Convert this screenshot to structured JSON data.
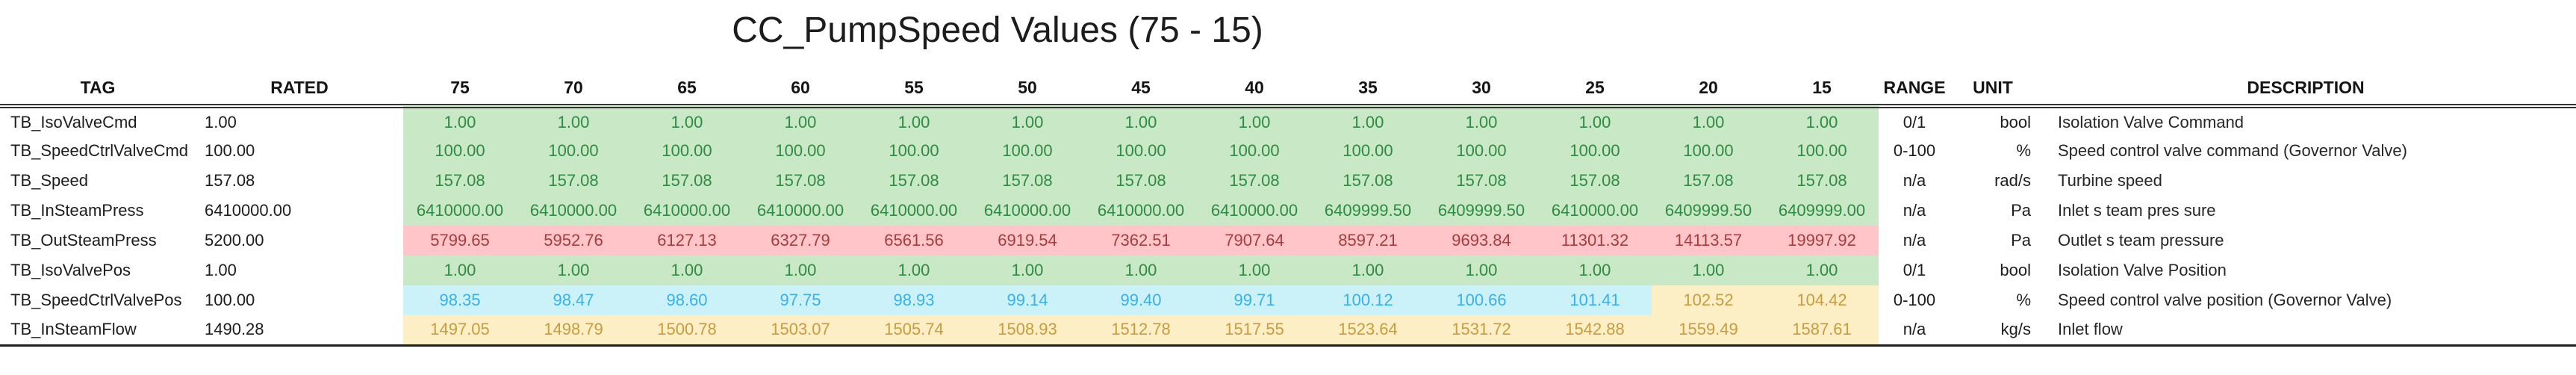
{
  "title": "CC_PumpSpeed Values (75 - 15)",
  "styles": {
    "good": {
      "bg": "#C9E8C5",
      "text": "#2E8B44"
    },
    "bad": {
      "bg": "#FFC5C9",
      "text": "#A83C3D"
    },
    "info": {
      "bg": "#CCF2F9",
      "text": "#39B0EA"
    },
    "warn": {
      "bg": "#FCEEC5",
      "text": "#C89C3C"
    }
  },
  "table": {
    "headers": {
      "tag": "TAG",
      "rated": "RATED",
      "speeds": [
        "75",
        "70",
        "65",
        "60",
        "55",
        "50",
        "45",
        "40",
        "35",
        "30",
        "25",
        "20",
        "15"
      ],
      "range": "RANGE",
      "unit": "UNIT",
      "description": "DESCRIPTION"
    },
    "rows": [
      {
        "tag": "TB_IsoValveCmd",
        "rated": "1.00",
        "values": [
          "1.00",
          "1.00",
          "1.00",
          "1.00",
          "1.00",
          "1.00",
          "1.00",
          "1.00",
          "1.00",
          "1.00",
          "1.00",
          "1.00",
          "1.00"
        ],
        "styles": [
          "good",
          "good",
          "good",
          "good",
          "good",
          "good",
          "good",
          "good",
          "good",
          "good",
          "good",
          "good",
          "good"
        ],
        "range": "0/1",
        "unit": "bool",
        "description": "Isolation Valve Command"
      },
      {
        "tag": "TB_SpeedCtrlValveCmd",
        "rated": "100.00",
        "values": [
          "100.00",
          "100.00",
          "100.00",
          "100.00",
          "100.00",
          "100.00",
          "100.00",
          "100.00",
          "100.00",
          "100.00",
          "100.00",
          "100.00",
          "100.00"
        ],
        "styles": [
          "good",
          "good",
          "good",
          "good",
          "good",
          "good",
          "good",
          "good",
          "good",
          "good",
          "good",
          "good",
          "good"
        ],
        "range": "0-100",
        "unit": "%",
        "description": "Speed control valve command (Governor Valve)"
      },
      {
        "tag": "TB_Speed",
        "rated": "157.08",
        "values": [
          "157.08",
          "157.08",
          "157.08",
          "157.08",
          "157.08",
          "157.08",
          "157.08",
          "157.08",
          "157.08",
          "157.08",
          "157.08",
          "157.08",
          "157.08"
        ],
        "styles": [
          "good",
          "good",
          "good",
          "good",
          "good",
          "good",
          "good",
          "good",
          "good",
          "good",
          "good",
          "good",
          "good"
        ],
        "range": "n/a",
        "unit": "rad/s",
        "description": "Turbine speed"
      },
      {
        "tag": "TB_InSteamPress",
        "rated": "6410000.00",
        "values": [
          "6410000.00",
          "6410000.00",
          "6410000.00",
          "6410000.00",
          "6410000.00",
          "6410000.00",
          "6410000.00",
          "6410000.00",
          "6409999.50",
          "6409999.50",
          "6410000.00",
          "6409999.50",
          "6409999.00"
        ],
        "styles": [
          "good",
          "good",
          "good",
          "good",
          "good",
          "good",
          "good",
          "good",
          "good",
          "good",
          "good",
          "good",
          "good"
        ],
        "range": "n/a",
        "unit": "Pa",
        "description": "Inlet s team pres sure"
      },
      {
        "tag": "TB_OutSteamPress",
        "rated": "5200.00",
        "values": [
          "5799.65",
          "5952.76",
          "6127.13",
          "6327.79",
          "6561.56",
          "6919.54",
          "7362.51",
          "7907.64",
          "8597.21",
          "9693.84",
          "11301.32",
          "14113.57",
          "19997.92"
        ],
        "styles": [
          "bad",
          "bad",
          "bad",
          "bad",
          "bad",
          "bad",
          "bad",
          "bad",
          "bad",
          "bad",
          "bad",
          "bad",
          "bad"
        ],
        "range": "n/a",
        "unit": "Pa",
        "description": "Outlet s team pressure"
      },
      {
        "tag": "TB_IsoValvePos",
        "rated": "1.00",
        "values": [
          "1.00",
          "1.00",
          "1.00",
          "1.00",
          "1.00",
          "1.00",
          "1.00",
          "1.00",
          "1.00",
          "1.00",
          "1.00",
          "1.00",
          "1.00"
        ],
        "styles": [
          "good",
          "good",
          "good",
          "good",
          "good",
          "good",
          "good",
          "good",
          "good",
          "good",
          "good",
          "good",
          "good"
        ],
        "range": "0/1",
        "unit": "bool",
        "description": "Isolation Valve Position"
      },
      {
        "tag": "TB_SpeedCtrlValvePos",
        "rated": "100.00",
        "values": [
          "98.35",
          "98.47",
          "98.60",
          "97.75",
          "98.93",
          "99.14",
          "99.40",
          "99.71",
          "100.12",
          "100.66",
          "101.41",
          "102.52",
          "104.42"
        ],
        "styles": [
          "info",
          "info",
          "info",
          "info",
          "info",
          "info",
          "info",
          "info",
          "info",
          "info",
          "info",
          "warn",
          "warn"
        ],
        "range": "0-100",
        "unit": "%",
        "description": "Speed control valve position (Governor Valve)"
      },
      {
        "tag": "TB_InSteamFlow",
        "rated": "1490.28",
        "values": [
          "1497.05",
          "1498.79",
          "1500.78",
          "1503.07",
          "1505.74",
          "1508.93",
          "1512.78",
          "1517.55",
          "1523.64",
          "1531.72",
          "1542.88",
          "1559.49",
          "1587.61"
        ],
        "styles": [
          "warn",
          "warn",
          "warn",
          "warn",
          "warn",
          "warn",
          "warn",
          "warn",
          "warn",
          "warn",
          "warn",
          "warn",
          "warn"
        ],
        "range": "n/a",
        "unit": "kg/s",
        "description": "Inlet flow"
      }
    ]
  }
}
